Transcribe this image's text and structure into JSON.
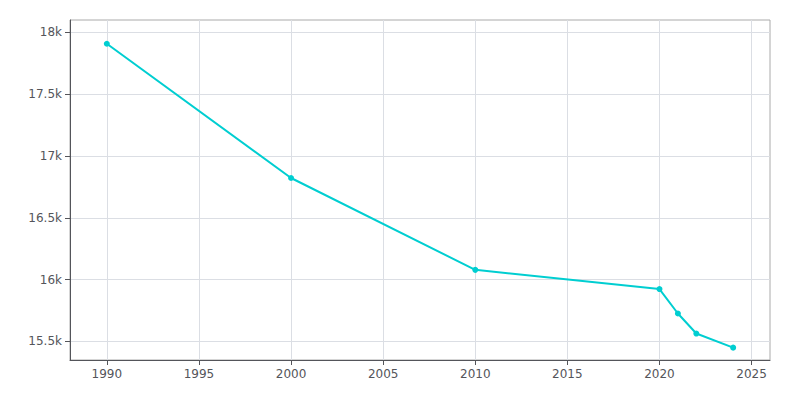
{
  "chart_data": {
    "type": "line",
    "x": [
      1990,
      2000,
      2010,
      2020,
      2021,
      2022,
      2024
    ],
    "values": [
      17908,
      16822,
      16079,
      15924,
      15726,
      15564,
      15450
    ],
    "color": "#00CED1",
    "marker": "circle",
    "xlim": [
      1988,
      2026
    ],
    "ylim": [
      15350,
      18100
    ],
    "xticks": [
      1990,
      1995,
      2000,
      2005,
      2010,
      2015,
      2020,
      2025
    ],
    "yticks": [
      {
        "value": 15500,
        "label": "15.5k"
      },
      {
        "value": 16000,
        "label": "16k"
      },
      {
        "value": 16500,
        "label": "16.5k"
      },
      {
        "value": 17000,
        "label": "17k"
      },
      {
        "value": 17500,
        "label": "17.5k"
      },
      {
        "value": 18000,
        "label": "18k"
      }
    ],
    "grid": true
  }
}
